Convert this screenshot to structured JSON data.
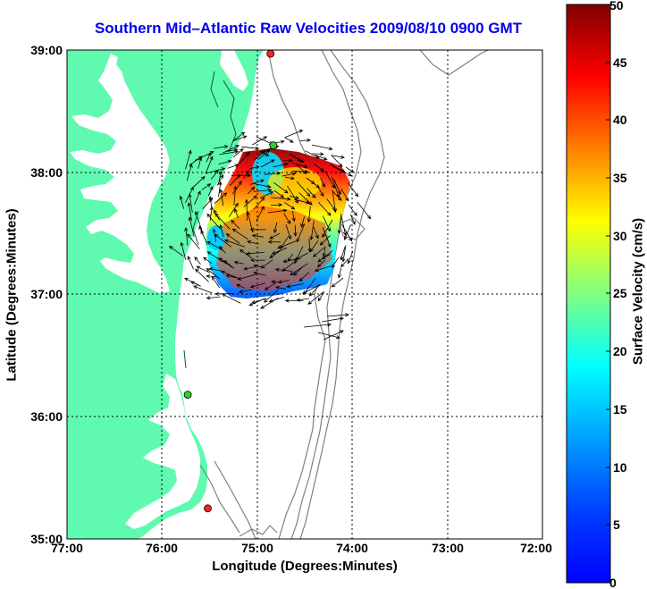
{
  "title": "Southern Mid–Atlantic Raw Velocities 2009/08/10 0900 GMT",
  "x_axis": {
    "label": "Longitude (Degrees:Minutes)",
    "ticks": [
      "77:00",
      "76:00",
      "75:00",
      "74:00",
      "73:00",
      "72:00"
    ]
  },
  "y_axis": {
    "label": "Latitude (Degrees:Minutes)",
    "ticks": [
      "39:00",
      "38:00",
      "37:00",
      "36:00",
      "35:00"
    ]
  },
  "colorbar": {
    "label": "Surface Velocity (cm/s)",
    "ticks": [
      "50",
      "45",
      "40",
      "35",
      "30",
      "25",
      "20",
      "15",
      "10",
      "5",
      "0"
    ],
    "min": 0,
    "max": 50,
    "colormap": "jet"
  },
  "map_data": {
    "projection": "plate carree",
    "lon_range": [
      -77,
      -72
    ],
    "lat_range": [
      35,
      39
    ],
    "grid": true,
    "colors": {
      "land": "#5ffab0",
      "title": "#0000ee",
      "bathymetry": "#808080",
      "vectors": "#000000"
    },
    "stations": [
      {
        "lon": -74.86,
        "lat": 38.97,
        "color": "#ff2020"
      },
      {
        "lon": -74.83,
        "lat": 38.22,
        "color": "#33cc33"
      },
      {
        "lon": -75.73,
        "lat": 36.18,
        "color": "#33cc33"
      },
      {
        "lon": -75.52,
        "lat": 35.25,
        "color": "#ff2020"
      }
    ],
    "velocity_field_center": {
      "lon": -74.9,
      "lat": 37.6
    },
    "velocity_range_cm_s": [
      5,
      50
    ]
  }
}
